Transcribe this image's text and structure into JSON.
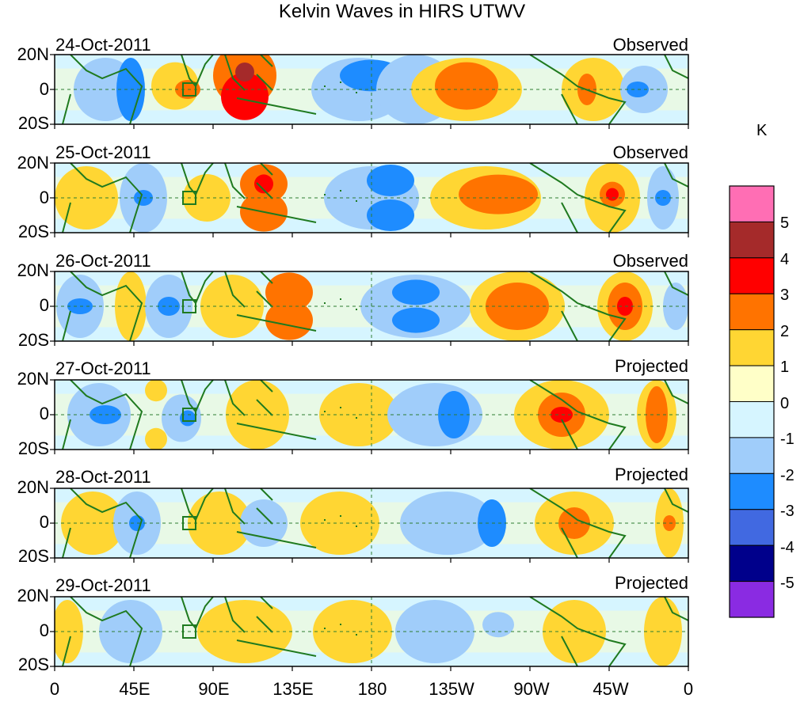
{
  "title": "Kelvin Waves in HIRS UTWV",
  "panels": [
    {
      "date": "24-Oct-2011",
      "kind": "Observed"
    },
    {
      "date": "25-Oct-2011",
      "kind": "Observed"
    },
    {
      "date": "26-Oct-2011",
      "kind": "Observed"
    },
    {
      "date": "27-Oct-2011",
      "kind": "Projected"
    },
    {
      "date": "28-Oct-2011",
      "kind": "Projected"
    },
    {
      "date": "29-Oct-2011",
      "kind": "Projected"
    }
  ],
  "lat_labels": [
    "20N",
    "0",
    "20S"
  ],
  "lon_labels": [
    "0",
    "45E",
    "90E",
    "135E",
    "180",
    "135W",
    "90W",
    "45W",
    "0"
  ],
  "colorbar": {
    "unit": "K",
    "labels": [
      "5",
      "4",
      "3",
      "2",
      "1",
      "0",
      "-1",
      "-2",
      "-3",
      "-4",
      "-5"
    ],
    "colors": [
      "#ff6eb4",
      "#a52a2a",
      "#ff0000",
      "#ff7300",
      "#ffd633",
      "#ffffc8",
      "#d6f5ff",
      "#a0cdfa",
      "#1e8cff",
      "#4169e1",
      "#00008b",
      "#8a2be2"
    ]
  },
  "colors": {
    "coast": "#1f7a1f",
    "box": "#1f7a1f"
  }
}
